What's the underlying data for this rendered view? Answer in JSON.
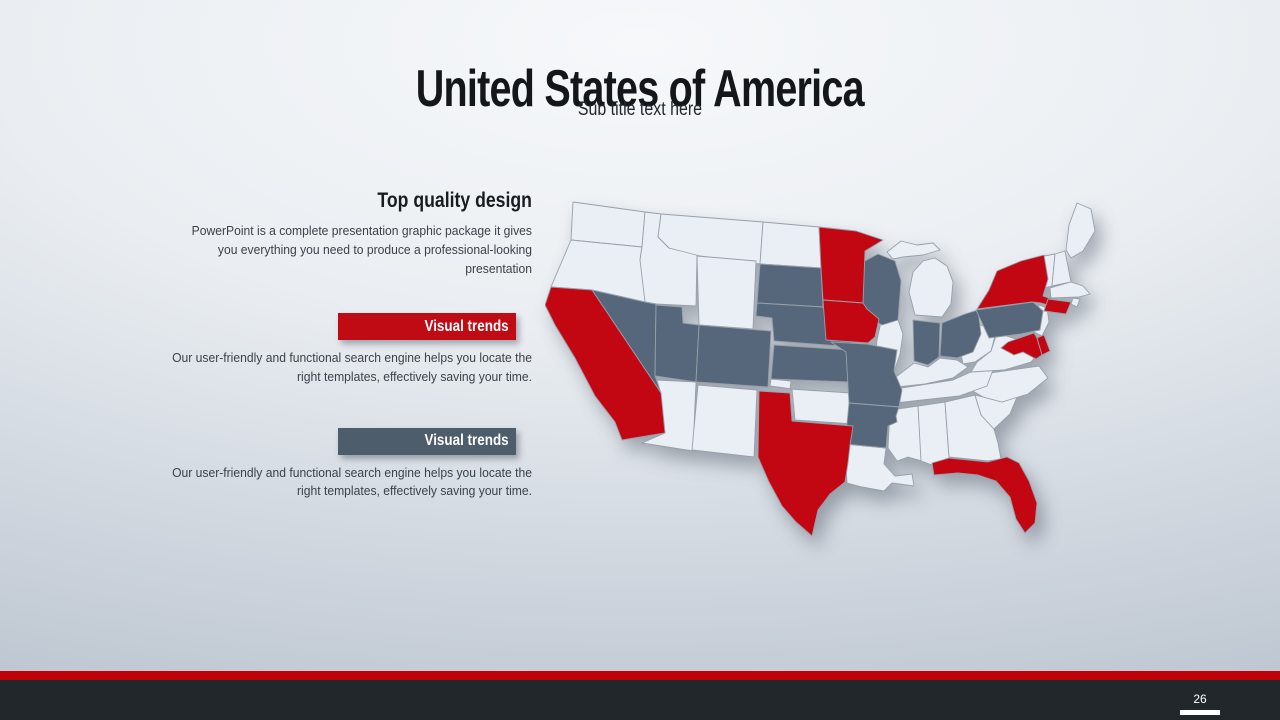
{
  "slide": {
    "title": "United States of America",
    "subtitle": "Sub title text here",
    "page_number": "26"
  },
  "left_column": {
    "heading": "Top quality design",
    "intro": "PowerPoint is a complete presentation graphic package it gives you everything you need to produce a professional-looking presentation",
    "items": [
      {
        "label": "Visual trends",
        "color": "#c00b15",
        "text": "Our user-friendly and functional search engine helps you locate the right templates, effectively saving your time."
      },
      {
        "label": "Visual trends",
        "color": "#4d5d6b",
        "text": "Our user-friendly and functional search engine helps you locate the right templates, effectively saving your time."
      }
    ]
  },
  "map": {
    "region": "United States",
    "legend_colors": {
      "highlight": "#c20712",
      "secondary": "#56677b",
      "base": "#eaeff5",
      "border": "#97a0aa"
    },
    "states": {
      "WA": "base",
      "OR": "base",
      "ID": "base",
      "MT": "base",
      "WY": "base",
      "ND": "base",
      "AZ": "base",
      "NM": "base",
      "OK": "base",
      "LA": "base",
      "MS": "base",
      "AL": "base",
      "GA": "base",
      "SC": "base",
      "NC": "base",
      "TN": "base",
      "KY": "base",
      "VA": "base",
      "WV": "base",
      "IL": "base",
      "MI": "base",
      "ME": "base",
      "VT": "base",
      "NH": "base",
      "MA": "base",
      "RI": "base",
      "NJ": "base",
      "NV": "secondary",
      "UT": "secondary",
      "CO": "secondary",
      "SD": "secondary",
      "NE": "secondary",
      "KS": "secondary",
      "MO": "secondary",
      "AR": "secondary",
      "WI": "secondary",
      "IN": "secondary",
      "OH": "secondary",
      "PA": "secondary",
      "CA": "highlight",
      "MN": "highlight",
      "IA": "highlight",
      "TX": "highlight",
      "NY": "highlight",
      "FL": "highlight",
      "MD": "highlight",
      "DE": "highlight",
      "CT": "highlight"
    }
  },
  "footer": {
    "accent_color": "#c00109",
    "bar_color": "#22272b"
  }
}
